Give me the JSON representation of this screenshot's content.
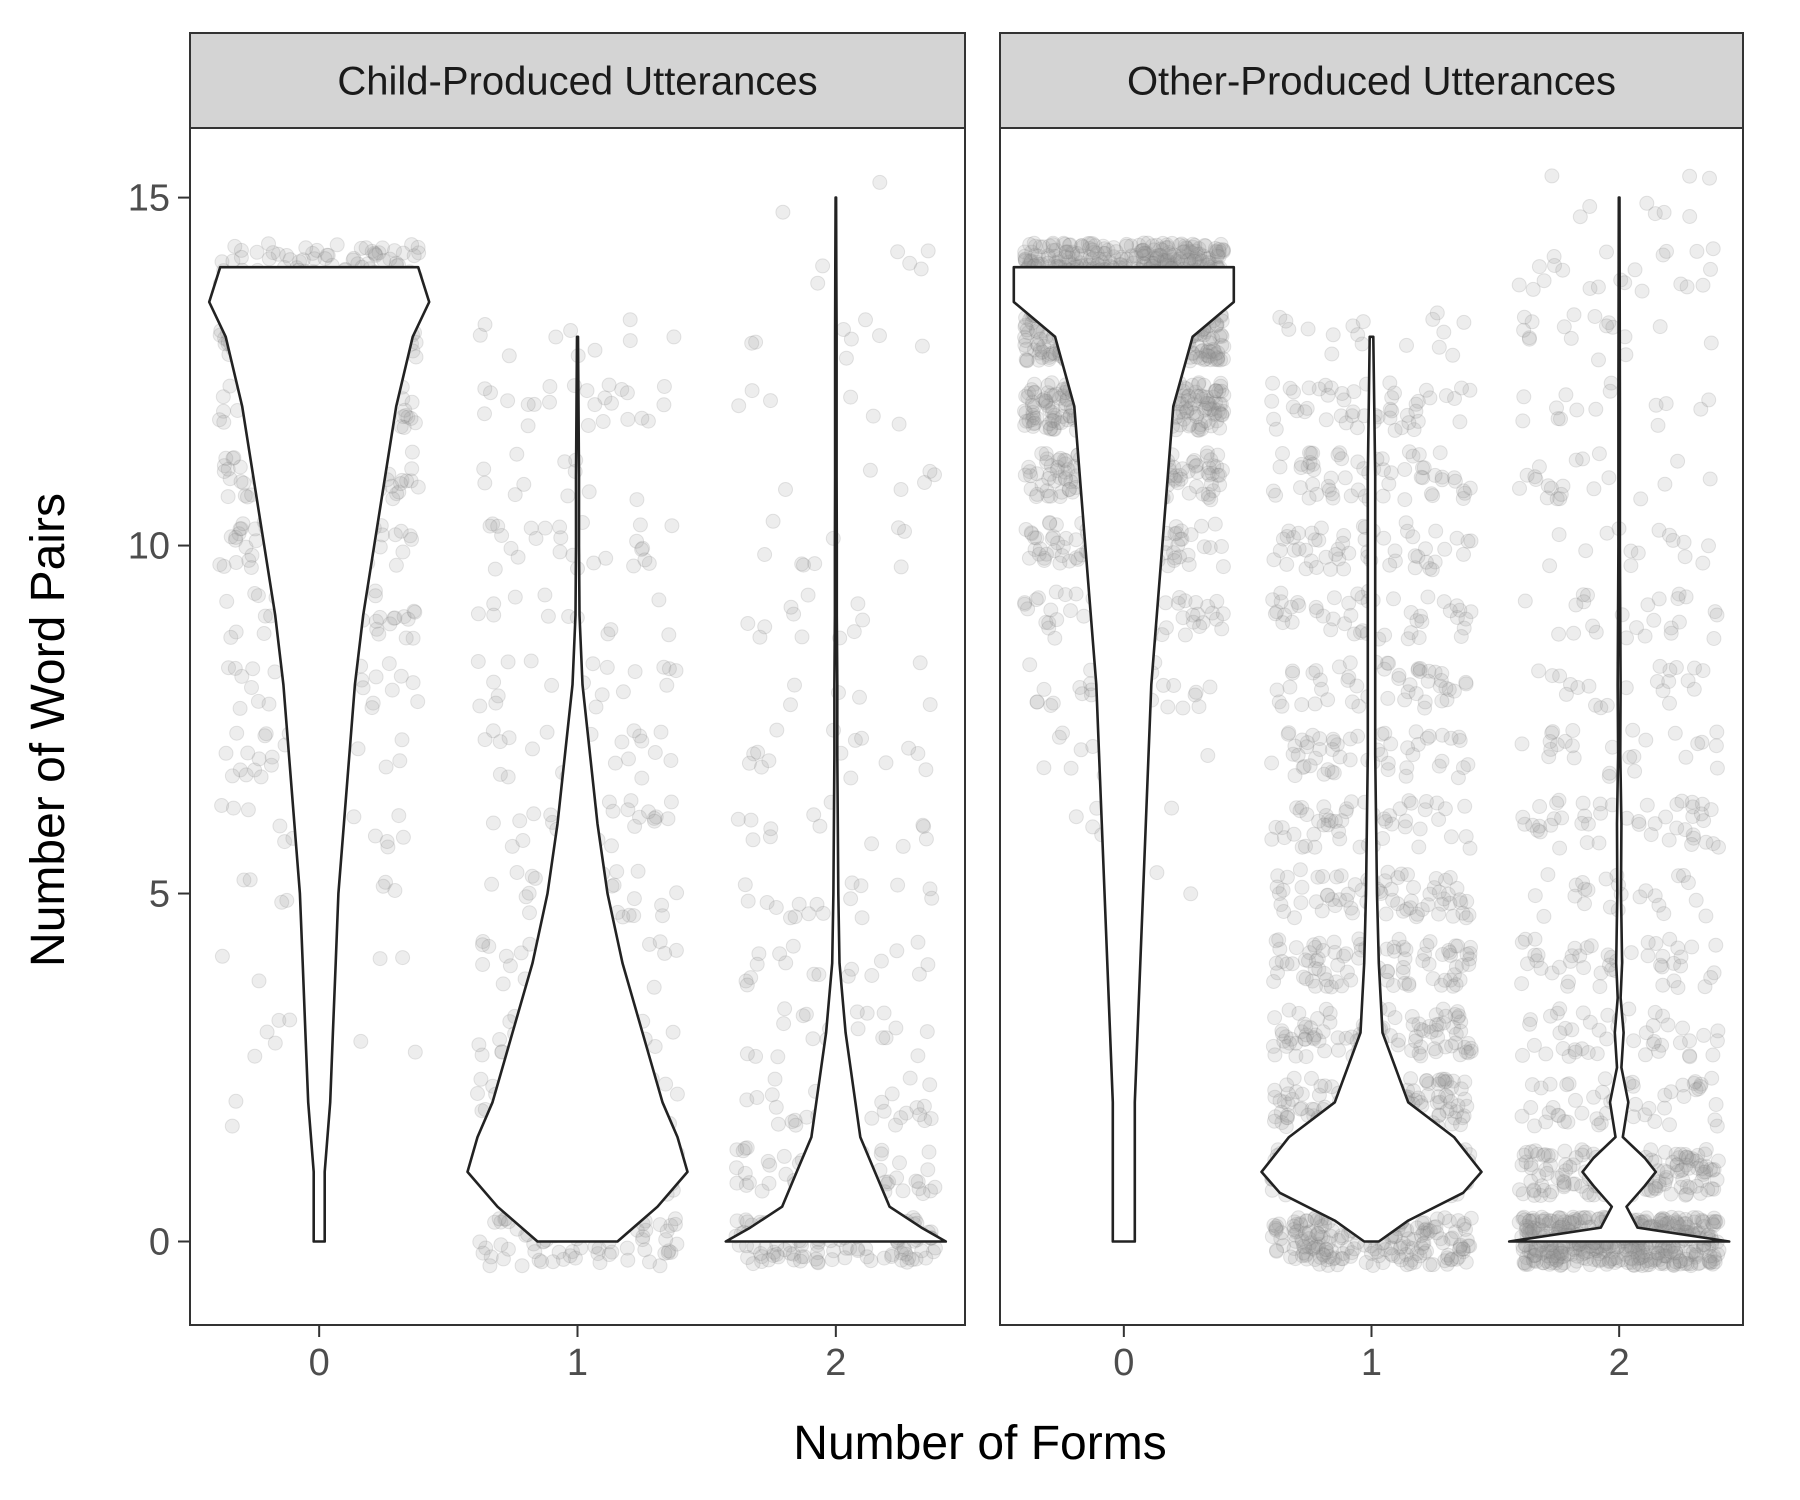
{
  "chart_data": {
    "type": "violin",
    "xlabel": "Number of Forms",
    "ylabel": "Number of Word Pairs",
    "ylim": [
      -1.2,
      16.0
    ],
    "yticks": [
      0,
      5,
      10,
      15
    ],
    "categories": [
      "0",
      "1",
      "2"
    ],
    "grid": false,
    "legend": "none",
    "colors": {
      "point": "#9a9a9a",
      "violin_line": "#222222",
      "violin_fill": "#ffffff",
      "strip_fill": "#d4d4d4"
    },
    "panels": [
      {
        "title": "Child-Produced Utterances",
        "violins": [
          {
            "category": "0",
            "min": 0,
            "max": 14,
            "profile": [
              [
                0,
                0.01
              ],
              [
                1,
                0.01
              ],
              [
                2,
                0.02
              ],
              [
                3,
                0.025
              ],
              [
                4,
                0.03
              ],
              [
                5,
                0.035
              ],
              [
                6,
                0.045
              ],
              [
                7,
                0.055
              ],
              [
                8,
                0.065
              ],
              [
                9,
                0.08
              ],
              [
                10,
                0.1
              ],
              [
                11,
                0.12
              ],
              [
                12,
                0.14
              ],
              [
                13,
                0.17
              ],
              [
                13.5,
                0.2
              ],
              [
                14,
                0.18
              ]
            ]
          },
          {
            "category": "1",
            "min": 0,
            "max": 13,
            "profile": [
              [
                0,
                0.08
              ],
              [
                0.5,
                0.16
              ],
              [
                1,
                0.22
              ],
              [
                1.5,
                0.2
              ],
              [
                2,
                0.17
              ],
              [
                3,
                0.13
              ],
              [
                4,
                0.09
              ],
              [
                5,
                0.06
              ],
              [
                6,
                0.04
              ],
              [
                7,
                0.025
              ],
              [
                8,
                0.01
              ],
              [
                9,
                0.004
              ],
              [
                10,
                0.003
              ],
              [
                11,
                0.003
              ],
              [
                12,
                0.002
              ],
              [
                13,
                0.001
              ]
            ]
          },
          {
            "category": "2",
            "min": 0,
            "max": 15,
            "profile": [
              [
                0,
                0.45
              ],
              [
                0.2,
                0.35
              ],
              [
                0.5,
                0.22
              ],
              [
                1,
                0.16
              ],
              [
                1.5,
                0.1
              ],
              [
                2,
                0.08
              ],
              [
                3,
                0.04
              ],
              [
                4,
                0.015
              ],
              [
                5,
                0.01
              ],
              [
                6,
                0.008
              ],
              [
                7,
                0.006
              ],
              [
                8,
                0.006
              ],
              [
                9,
                0.004
              ],
              [
                10,
                0.004
              ],
              [
                11,
                0.003
              ],
              [
                12,
                0.003
              ],
              [
                13,
                0.003
              ],
              [
                14,
                0.002
              ],
              [
                15,
                0.001
              ]
            ]
          }
        ],
        "points": [
          {
            "category": "0",
            "count": 520,
            "max": 14.3,
            "skew": 0.3
          },
          {
            "category": "1",
            "count": 420,
            "max": 13.3,
            "skew": 2.2
          },
          {
            "category": "2",
            "count": 340,
            "max": 15.2,
            "skew": 3.5
          }
        ]
      },
      {
        "title": "Other-Produced Utterances",
        "violins": [
          {
            "category": "0",
            "min": 0,
            "max": 14,
            "profile": [
              [
                0,
                0.004
              ],
              [
                2,
                0.004
              ],
              [
                4,
                0.006
              ],
              [
                6,
                0.008
              ],
              [
                8,
                0.01
              ],
              [
                10,
                0.014
              ],
              [
                12,
                0.018
              ],
              [
                13,
                0.025
              ],
              [
                13.5,
                0.04
              ],
              [
                14,
                0.04
              ]
            ]
          },
          {
            "category": "1",
            "min": 0,
            "max": 13,
            "profile": [
              [
                0,
                0.004
              ],
              [
                0.3,
                0.02
              ],
              [
                0.7,
                0.05
              ],
              [
                1,
                0.06
              ],
              [
                1.5,
                0.045
              ],
              [
                2,
                0.02
              ],
              [
                3,
                0.006
              ],
              [
                4,
                0.004
              ],
              [
                5,
                0.003
              ],
              [
                7,
                0.002
              ],
              [
                9,
                0.002
              ],
              [
                11,
                0.002
              ],
              [
                13,
                0.001
              ]
            ]
          },
          {
            "category": "2",
            "min": 0,
            "max": 15,
            "profile": [
              [
                0,
                0.3
              ],
              [
                0.2,
                0.05
              ],
              [
                0.5,
                0.02
              ],
              [
                0.8,
                0.07
              ],
              [
                1,
                0.1
              ],
              [
                1.2,
                0.07
              ],
              [
                1.5,
                0.01
              ],
              [
                2,
                0.025
              ],
              [
                2.5,
                0.006
              ],
              [
                3,
                0.012
              ],
              [
                3.5,
                0.004
              ],
              [
                4,
                0.008
              ],
              [
                5,
                0.005
              ],
              [
                6,
                0.006
              ],
              [
                7,
                0.003
              ],
              [
                8,
                0.004
              ],
              [
                10,
                0.002
              ],
              [
                12,
                0.002
              ],
              [
                15,
                0.001
              ]
            ]
          }
        ],
        "points": [
          {
            "category": "0",
            "count": 1400,
            "max": 14.3,
            "skew": 0.15
          },
          {
            "category": "1",
            "count": 1150,
            "max": 13.0,
            "skew": 1.8
          },
          {
            "category": "2",
            "count": 1000,
            "max": 15.0,
            "skew": 4.5
          }
        ]
      }
    ]
  }
}
